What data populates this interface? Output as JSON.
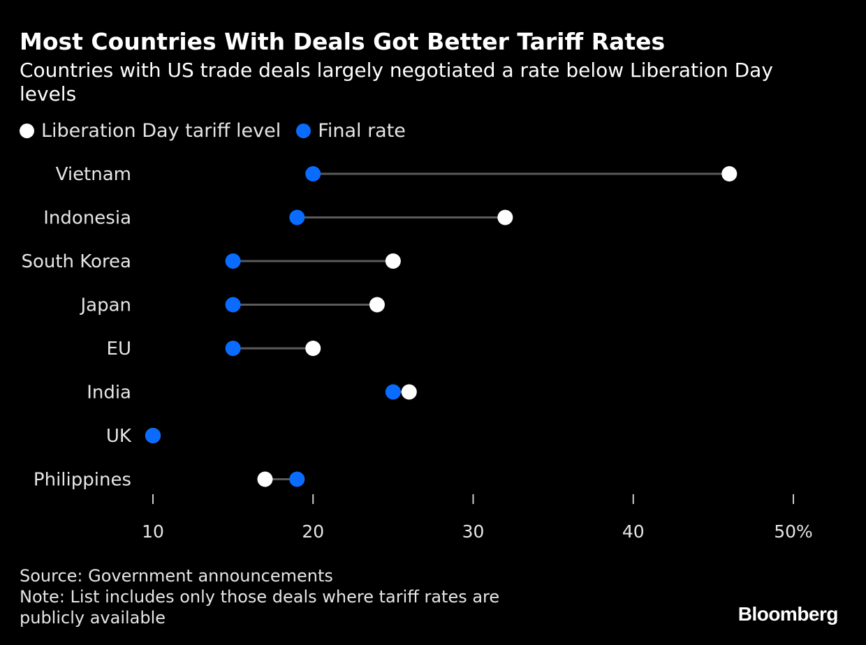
{
  "chart_data": {
    "type": "dumbbell",
    "title": "Most Countries With Deals Got Better Tariff Rates",
    "subtitle": "Countries with US trade deals largely negotiated a rate below Liberation Day levels",
    "legend": [
      {
        "name": "Liberation Day tariff level",
        "color": "#ffffff"
      },
      {
        "name": "Final rate",
        "color": "#0a6cff"
      }
    ],
    "categories": [
      "Vietnam",
      "Indonesia",
      "South Korea",
      "Japan",
      "EU",
      "India",
      "UK",
      "Philippines"
    ],
    "series": [
      {
        "name": "Liberation Day tariff level",
        "values": [
          46,
          32,
          25,
          24,
          20,
          26,
          10,
          17
        ]
      },
      {
        "name": "Final rate",
        "values": [
          20,
          19,
          15,
          15,
          15,
          25,
          10,
          19
        ]
      }
    ],
    "xlim": [
      10,
      50
    ],
    "xticks": [
      10,
      20,
      30,
      40,
      50
    ],
    "xtick_labels": [
      "10",
      "20",
      "30",
      "40",
      "50%"
    ],
    "colors": {
      "liberation": "#ffffff",
      "final": "#0a6cff",
      "connector": "#5a5a5a",
      "axis": "#cccccc",
      "text": "#e6e6e6"
    }
  },
  "footer": {
    "source": "Source: Government announcements",
    "note": "Note: List includes only those deals where tariff rates are\npublicly available"
  },
  "brand": "Bloomberg"
}
